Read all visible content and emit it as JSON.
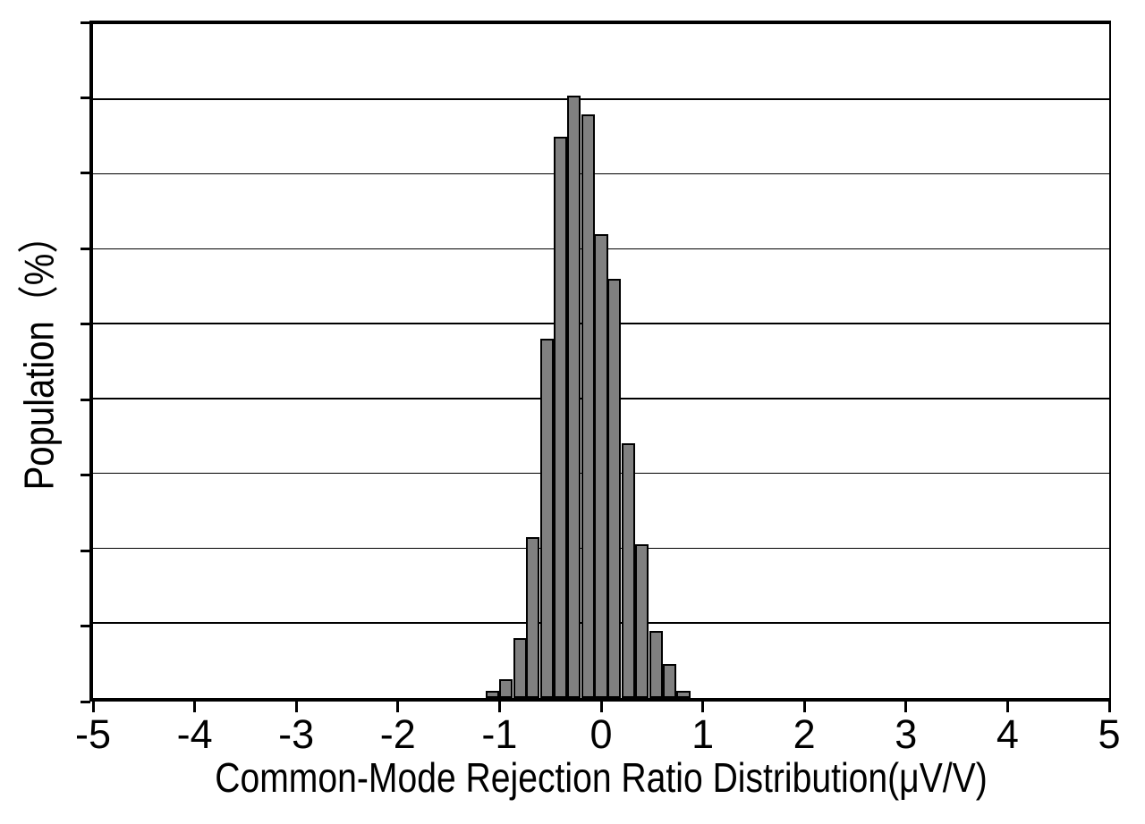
{
  "chart_data": {
    "type": "bar",
    "subtype": "histogram",
    "title": "",
    "xlabel": "Common-Mode Rejection Ratio Distribution(μV/V)",
    "ylabel": "Population（%）",
    "xlim": [
      -5,
      5
    ],
    "ylim": [
      0,
      18
    ],
    "x_ticks": [
      -5,
      -4,
      -3,
      -2,
      -1,
      0,
      1,
      2,
      3,
      4,
      5
    ],
    "x_tick_labels": [
      "-5",
      "-4",
      "-3",
      "-2",
      "-1",
      "0",
      "1",
      "2",
      "3",
      "4",
      "5"
    ],
    "y_tick_labels_shown": false,
    "y_gridline_step": 2,
    "grid": "horizontal",
    "legend": "none",
    "bar_color": "#808080",
    "bar_edge_color": "#000000",
    "bin_width": 0.134,
    "bin_centers": [
      -1.07,
      -0.94,
      -0.8,
      -0.67,
      -0.53,
      -0.4,
      -0.27,
      -0.13,
      0.0,
      0.13,
      0.27,
      0.4,
      0.54,
      0.67,
      0.81
    ],
    "values_percent": [
      0.2,
      0.5,
      1.6,
      4.3,
      9.6,
      15.0,
      16.1,
      15.6,
      12.4,
      11.2,
      6.8,
      4.1,
      1.8,
      0.9,
      0.2
    ]
  }
}
